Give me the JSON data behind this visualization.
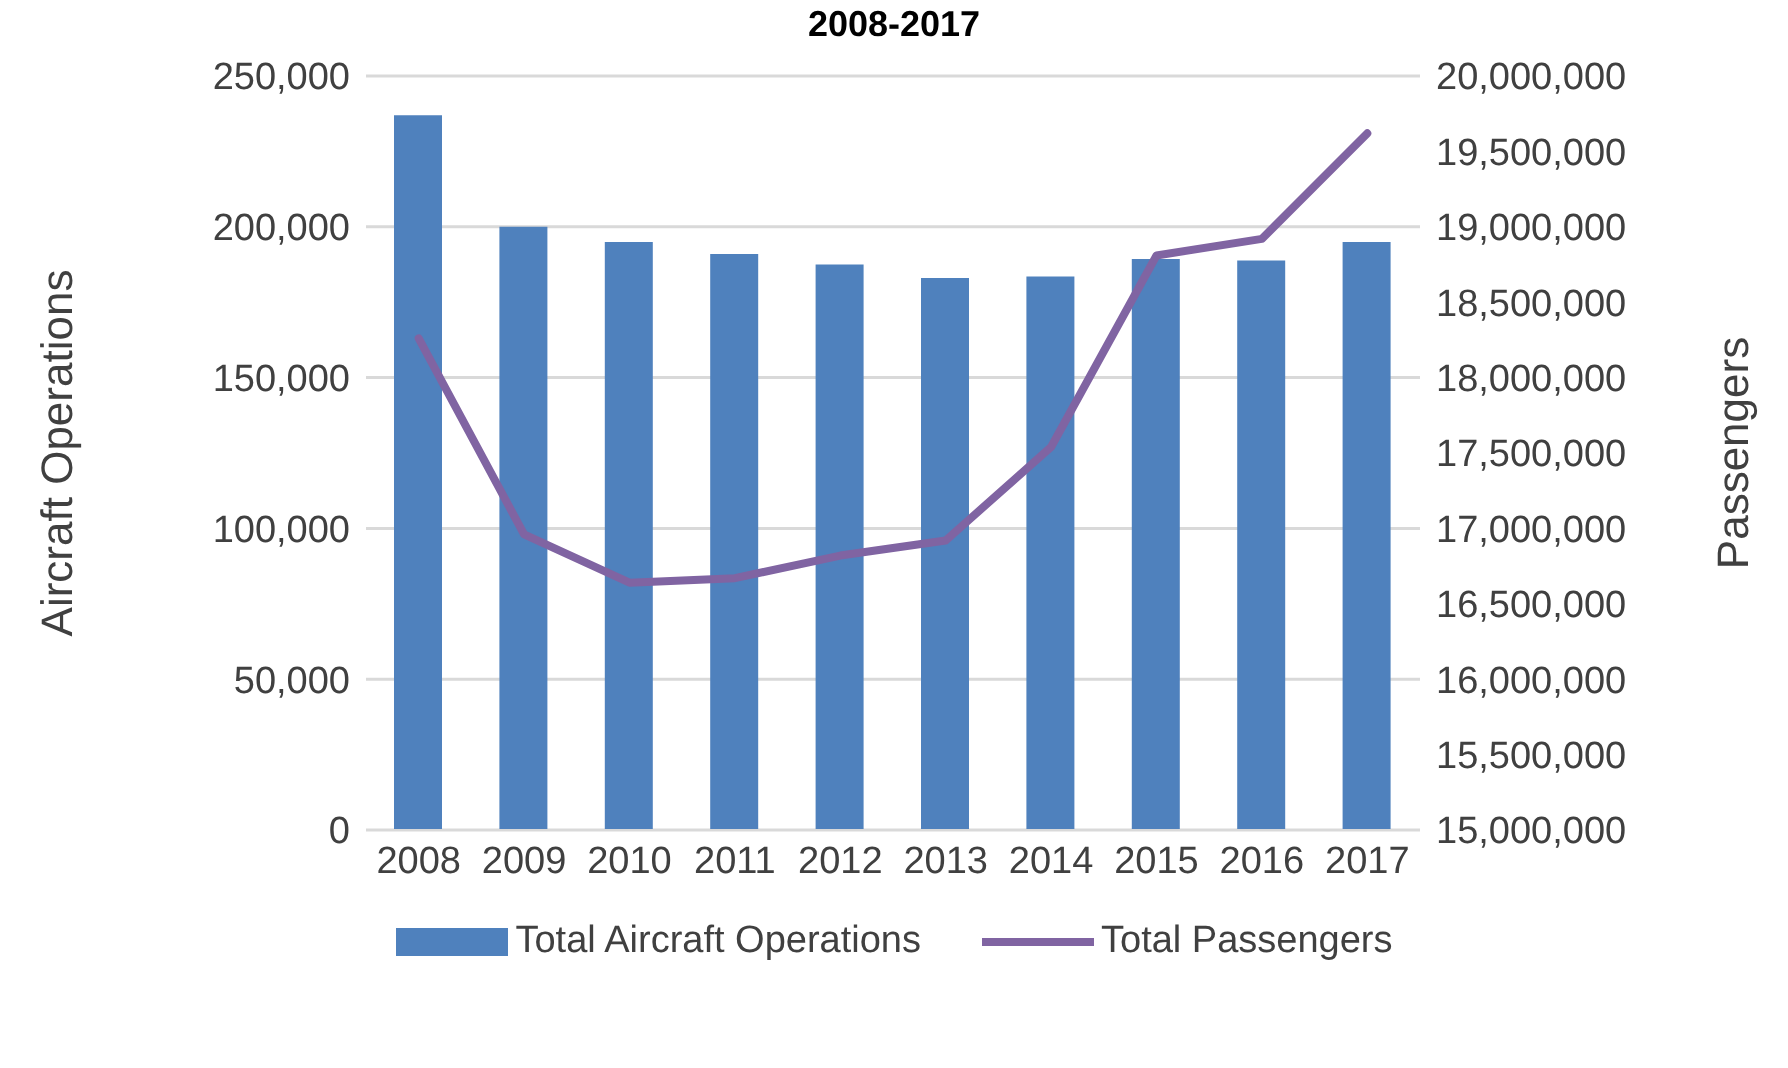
{
  "chart_data": {
    "type": "bar",
    "title": "2008-2017",
    "ylabel": "Aircraft Operations",
    "y2label": "Passengers",
    "categories": [
      "2008",
      "2009",
      "2010",
      "2011",
      "2012",
      "2013",
      "2014",
      "2015",
      "2016",
      "2017"
    ],
    "series": [
      {
        "name": "Total Aircraft Operations",
        "color": "#4f81bd",
        "values": [
          237000,
          200000,
          195000,
          191000,
          187500,
          183000,
          183500,
          189300,
          188800,
          195000
        ]
      },
      {
        "name": "Total Passengers",
        "type": "line",
        "axis": "y2",
        "color": "#8064a2",
        "values": [
          18260000,
          16960000,
          16640000,
          16670000,
          16820000,
          16920000,
          17540000,
          18810000,
          18920000,
          19620000
        ]
      }
    ],
    "ylim": [
      0,
      250000
    ],
    "yticks": [
      {
        "value": 0,
        "label": "0"
      },
      {
        "value": 50000,
        "label": "50,000"
      },
      {
        "value": 100000,
        "label": "100,000"
      },
      {
        "value": 150000,
        "label": "150,000"
      },
      {
        "value": 200000,
        "label": "200,000"
      },
      {
        "value": 250000,
        "label": "250,000"
      }
    ],
    "y2lim": [
      15000000,
      20000000
    ],
    "y2ticks": [
      {
        "value": 15000000,
        "label": "15,000,000"
      },
      {
        "value": 15500000,
        "label": "15,500,000"
      },
      {
        "value": 16000000,
        "label": "16,000,000"
      },
      {
        "value": 16500000,
        "label": "16,500,000"
      },
      {
        "value": 17000000,
        "label": "17,000,000"
      },
      {
        "value": 17500000,
        "label": "17,500,000"
      },
      {
        "value": 18000000,
        "label": "18,000,000"
      },
      {
        "value": 18500000,
        "label": "18,500,000"
      },
      {
        "value": 19000000,
        "label": "19,000,000"
      },
      {
        "value": 19500000,
        "label": "19,500,000"
      },
      {
        "value": 20000000,
        "label": "20,000,000"
      }
    ],
    "grid": "y",
    "legend": "bottom",
    "marker": "none"
  }
}
